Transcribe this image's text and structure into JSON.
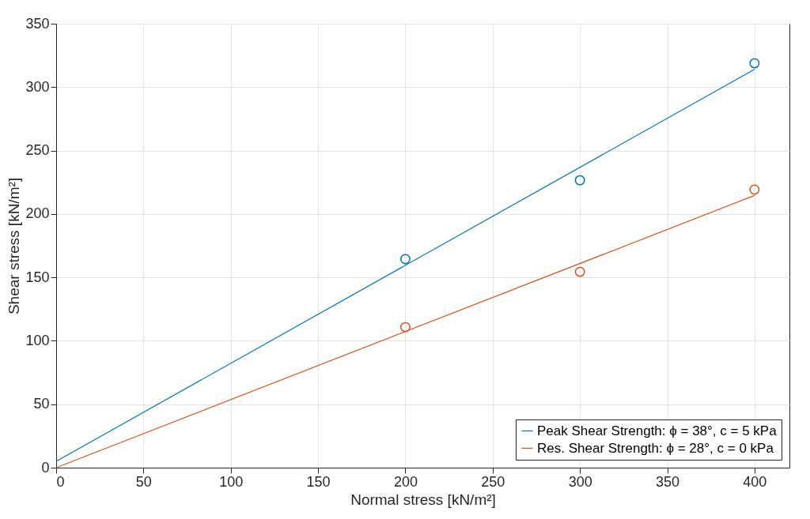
{
  "chart_data": {
    "type": "line",
    "xlabel": "Normal stress [kN/m²]",
    "ylabel": "Shear stress [kN/m²]",
    "xlim": [
      0,
      420
    ],
    "xticks": [
      0,
      50,
      100,
      150,
      200,
      250,
      300,
      350,
      400
    ],
    "ylim": [
      0,
      350
    ],
    "yticks": [
      0,
      50,
      100,
      150,
      200,
      250,
      300,
      350
    ],
    "grid": true,
    "legend": "bottom right",
    "line_style": "solid",
    "series": [
      {
        "name": "Peak Shear Strength: ϕ = 38°, c = 5 kPa",
        "color": "#0072bd",
        "x": [
          0,
          400
        ],
        "values": [
          5,
          314
        ]
      },
      {
        "name": "Res. Shear Strength: ϕ = 28°, c = 0 kPa",
        "color": "#d95319",
        "x": [
          0,
          400
        ],
        "values": [
          0,
          214.6
        ]
      },
      {
        "type": "scatter",
        "color": "#0072bd",
        "marker": "circle",
        "x": [
          200,
          300,
          400
        ],
        "values": [
          164.4,
          226.6,
          318.8
        ]
      },
      {
        "type": "scatter",
        "color": "#d95319",
        "marker": "circle",
        "x": [
          200,
          300,
          400
        ],
        "values": [
          110.8,
          154.4,
          219.2
        ]
      }
    ]
  }
}
